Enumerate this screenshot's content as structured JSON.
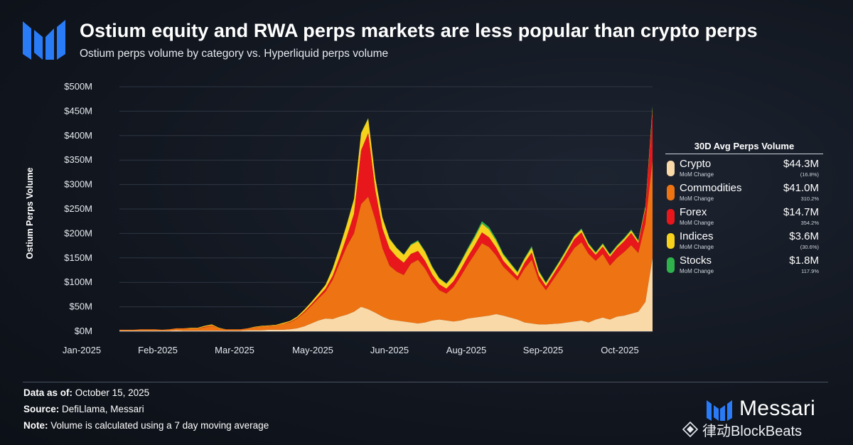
{
  "header": {
    "title": "Ostium equity and RWA perps markets are less popular than crypto perps",
    "subtitle": "Ostium perps volume by category vs. Hyperliquid perps volume"
  },
  "legend": {
    "title": "30D Avg Perps Volume",
    "sub_label": "MoM Change",
    "items": [
      {
        "name": "Crypto",
        "value": "$44.3M",
        "change": "(16.8%)",
        "color": "#f9d9a7"
      },
      {
        "name": "Commodities",
        "value": "$41.0M",
        "change": "310.2%",
        "color": "#ee7313"
      },
      {
        "name": "Forex",
        "value": "$14.7M",
        "change": "354.2%",
        "color": "#e8171b"
      },
      {
        "name": "Indices",
        "value": "$3.6M",
        "change": "(30.6%)",
        "color": "#f7d21d"
      },
      {
        "name": "Stocks",
        "value": "$1.8M",
        "change": "117.9%",
        "color": "#2fb24c"
      }
    ]
  },
  "footer": {
    "data_as_of_label": "Data as of:",
    "data_as_of": "October 15, 2025",
    "source_label": "Source:",
    "source": "DefiLlama, Messari",
    "note_label": "Note:",
    "note": "Volume is calculated using a 7 day moving average"
  },
  "brand": {
    "name": "Messari",
    "accent": "#2a7bf6"
  },
  "watermark": {
    "text": "律动BlockBeats"
  },
  "chart_data": {
    "type": "area",
    "stacked": true,
    "ylabel": "Ostium Perps Volume",
    "ylim": [
      0,
      500
    ],
    "yticks": [
      0,
      50,
      100,
      150,
      200,
      250,
      300,
      350,
      400,
      450,
      500
    ],
    "ytick_labels": [
      "$0M",
      "$50M",
      "$100M",
      "$150M",
      "$200M",
      "$250M",
      "$300M",
      "$350M",
      "$400M",
      "$450M",
      "$500M"
    ],
    "xtick_labels": [
      "Jan-2025",
      "Feb-2025",
      "Mar-2025",
      "May-2025",
      "Jun-2025",
      "Aug-2025",
      "Sep-2025",
      "Oct-2025"
    ],
    "xtick_positions": [
      0,
      1,
      2,
      3,
      4,
      5,
      6,
      7
    ],
    "x": [
      0,
      0.1,
      0.2,
      0.3,
      0.4,
      0.5,
      0.6,
      0.7,
      0.8,
      0.9,
      1,
      1.1,
      1.2,
      1.3,
      1.4,
      1.5,
      1.6,
      1.7,
      1.8,
      1.9,
      2,
      2.1,
      2.2,
      2.3,
      2.4,
      2.5,
      2.6,
      2.7,
      2.8,
      2.9,
      3,
      3.1,
      3.2,
      3.3,
      3.4,
      3.5,
      3.6,
      3.7,
      3.8,
      3.9,
      4,
      4.1,
      4.2,
      4.3,
      4.4,
      4.5,
      4.6,
      4.7,
      4.8,
      4.9,
      5,
      5.1,
      5.2,
      5.3,
      5.4,
      5.5,
      5.6,
      5.7,
      5.8,
      5.9,
      6,
      6.1,
      6.2,
      6.3,
      6.4,
      6.5,
      6.6,
      6.7,
      6.8,
      6.9,
      7,
      7.1,
      7.2,
      7.3,
      7.4,
      7.5
    ],
    "series": [
      {
        "name": "Crypto",
        "color": "#f9d9a7",
        "values": [
          1,
          1,
          1,
          1,
          1,
          1,
          1,
          1,
          2,
          1,
          1,
          1,
          1,
          1,
          1,
          1,
          1,
          1,
          2,
          2,
          2,
          3,
          3,
          3,
          4,
          6,
          10,
          16,
          22,
          26,
          25,
          30,
          34,
          40,
          50,
          45,
          38,
          30,
          24,
          22,
          20,
          18,
          16,
          18,
          22,
          24,
          22,
          20,
          22,
          26,
          28,
          30,
          32,
          35,
          32,
          28,
          24,
          18,
          16,
          14,
          14,
          15,
          16,
          18,
          20,
          22,
          18,
          24,
          28,
          24,
          30,
          32,
          36,
          40,
          60,
          150
        ]
      },
      {
        "name": "Commodities",
        "color": "#ee7313",
        "values": [
          2,
          2,
          2,
          3,
          3,
          3,
          2,
          3,
          4,
          5,
          5,
          5,
          7,
          10,
          5,
          3,
          3,
          3,
          4,
          6,
          8,
          8,
          9,
          12,
          14,
          20,
          28,
          36,
          45,
          55,
          80,
          110,
          140,
          160,
          210,
          230,
          190,
          140,
          110,
          100,
          95,
          120,
          130,
          110,
          80,
          60,
          55,
          70,
          90,
          110,
          130,
          150,
          140,
          120,
          100,
          90,
          80,
          110,
          130,
          90,
          70,
          90,
          110,
          130,
          150,
          160,
          140,
          120,
          130,
          110,
          120,
          130,
          140,
          120,
          160,
          200
        ]
      },
      {
        "name": "Forex",
        "color": "#e8171b",
        "values": [
          0,
          0,
          0,
          0,
          0,
          0,
          0,
          0,
          0,
          0,
          0,
          0,
          1,
          1,
          0,
          0,
          0,
          0,
          0,
          0,
          0,
          0,
          0,
          0,
          1,
          1,
          2,
          3,
          4,
          6,
          8,
          12,
          20,
          40,
          110,
          130,
          60,
          40,
          35,
          30,
          25,
          20,
          18,
          16,
          14,
          12,
          10,
          12,
          14,
          16,
          18,
          22,
          20,
          16,
          12,
          10,
          8,
          12,
          15,
          10,
          8,
          10,
          12,
          15,
          18,
          20,
          15,
          12,
          15,
          18,
          20,
          22,
          25,
          20,
          30,
          100
        ]
      },
      {
        "name": "Indices",
        "color": "#f7d21d",
        "values": [
          0,
          0,
          0,
          0,
          0,
          0,
          0,
          0,
          0,
          0,
          1,
          1,
          2,
          2,
          1,
          0,
          0,
          0,
          0,
          1,
          1,
          1,
          1,
          2,
          2,
          3,
          4,
          5,
          6,
          8,
          15,
          20,
          25,
          30,
          35,
          30,
          25,
          22,
          20,
          18,
          16,
          18,
          20,
          18,
          15,
          12,
          10,
          12,
          14,
          15,
          16,
          18,
          16,
          14,
          12,
          10,
          8,
          8,
          10,
          8,
          6,
          6,
          6,
          6,
          6,
          6,
          5,
          4,
          5,
          4,
          4,
          5,
          5,
          4,
          5,
          8
        ]
      },
      {
        "name": "Stocks",
        "color": "#2fb24c",
        "values": [
          0,
          0,
          0,
          0,
          0,
          0,
          0,
          0,
          0,
          0,
          0,
          0,
          0,
          0,
          0,
          0,
          0,
          0,
          0,
          0,
          0,
          0,
          0,
          0,
          0,
          0,
          0,
          0,
          0,
          0,
          1,
          1,
          1,
          1,
          1,
          1,
          1,
          1,
          1,
          1,
          1,
          2,
          2,
          2,
          2,
          1,
          1,
          2,
          2,
          3,
          4,
          5,
          5,
          4,
          3,
          2,
          2,
          2,
          3,
          2,
          2,
          2,
          2,
          2,
          2,
          2,
          2,
          2,
          2,
          2,
          2,
          2,
          2,
          2,
          2,
          3
        ]
      }
    ]
  }
}
